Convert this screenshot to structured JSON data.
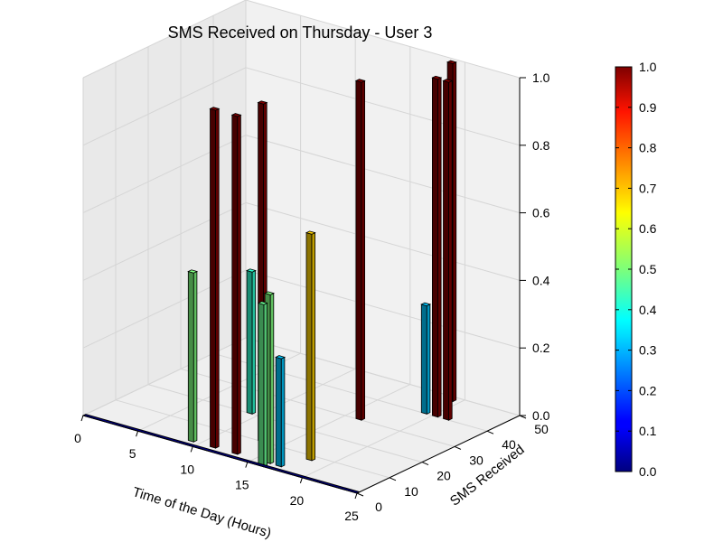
{
  "chart_data": {
    "type": "bar3d",
    "title": "SMS Received on Thursday - User 3",
    "xlabel": "Time of the Day (Hours)",
    "ylabel": "SMS Received",
    "zlabel": "",
    "xlim": [
      0,
      25
    ],
    "ylim": [
      0,
      50
    ],
    "zlim": [
      0,
      1.0
    ],
    "x_ticks": [
      "0",
      "5",
      "10",
      "15",
      "20",
      "25"
    ],
    "y_ticks": [
      "0",
      "10",
      "20",
      "30",
      "40",
      "50"
    ],
    "z_ticks": [
      "0.0",
      "0.2",
      "0.4",
      "0.6",
      "0.8",
      "1.0"
    ],
    "colorbar_ticks": [
      "0.0",
      "0.1",
      "0.2",
      "0.3",
      "0.4",
      "0.5",
      "0.6",
      "0.7",
      "0.8",
      "0.9",
      "1.0"
    ],
    "colormap": "jet",
    "grid": true,
    "bars": [
      {
        "hour": 9,
        "sms": 2,
        "value": 0.5
      },
      {
        "hour": 9,
        "sms": 20,
        "value": 0.42
      },
      {
        "hour": 11,
        "sms": 2,
        "value": 1.0
      },
      {
        "hour": 13,
        "sms": 2,
        "value": 1.0
      },
      {
        "hour": 13,
        "sms": 10,
        "value": 1.0
      },
      {
        "hour": 16,
        "sms": 0,
        "value": 0.48
      },
      {
        "hour": 16,
        "sms": 2,
        "value": 0.5
      },
      {
        "hour": 17,
        "sms": 2,
        "value": 0.32
      },
      {
        "hour": 18,
        "sms": 8,
        "value": 0.67
      },
      {
        "hour": 16,
        "sms": 30,
        "value": 1.0
      },
      {
        "hour": 19,
        "sms": 40,
        "value": 0.32
      },
      {
        "hour": 19,
        "sms": 48,
        "value": 1.0
      },
      {
        "hour": 20,
        "sms": 40,
        "value": 1.0
      },
      {
        "hour": 21,
        "sms": 40,
        "value": 1.0
      }
    ]
  }
}
